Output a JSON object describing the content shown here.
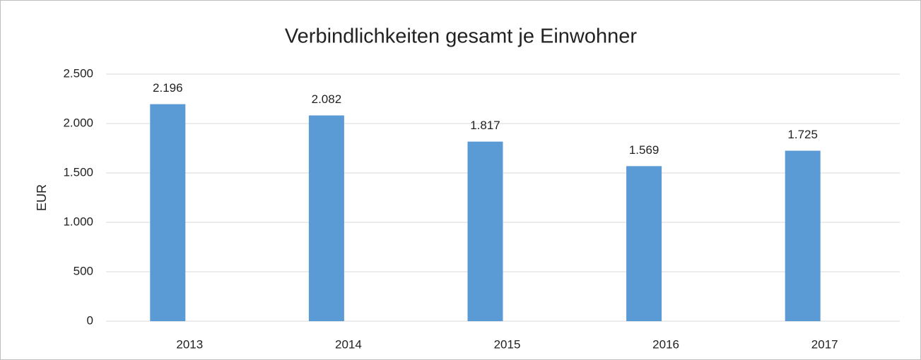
{
  "chart_data": {
    "type": "bar",
    "title": "Verbindlichkeiten gesamt je Einwohner",
    "ylabel": "EUR",
    "categories": [
      "2013",
      "2014",
      "2015",
      "2016",
      "2017"
    ],
    "values": [
      2196,
      2082,
      1817,
      1569,
      1725
    ],
    "value_labels": [
      "2.196",
      "2.082",
      "1.817",
      "1.569",
      "1.725"
    ],
    "color": "#5b9bd5",
    "ylim": [
      0,
      2500
    ],
    "yticks": [
      0,
      500,
      {
        "value": 1000,
        "label": "1.000"
      },
      {
        "value": 1500,
        "label": "1.500"
      },
      {
        "value": 2000,
        "label": "2.000"
      },
      {
        "value": 2500,
        "label": "2.500"
      }
    ],
    "grid": true
  }
}
